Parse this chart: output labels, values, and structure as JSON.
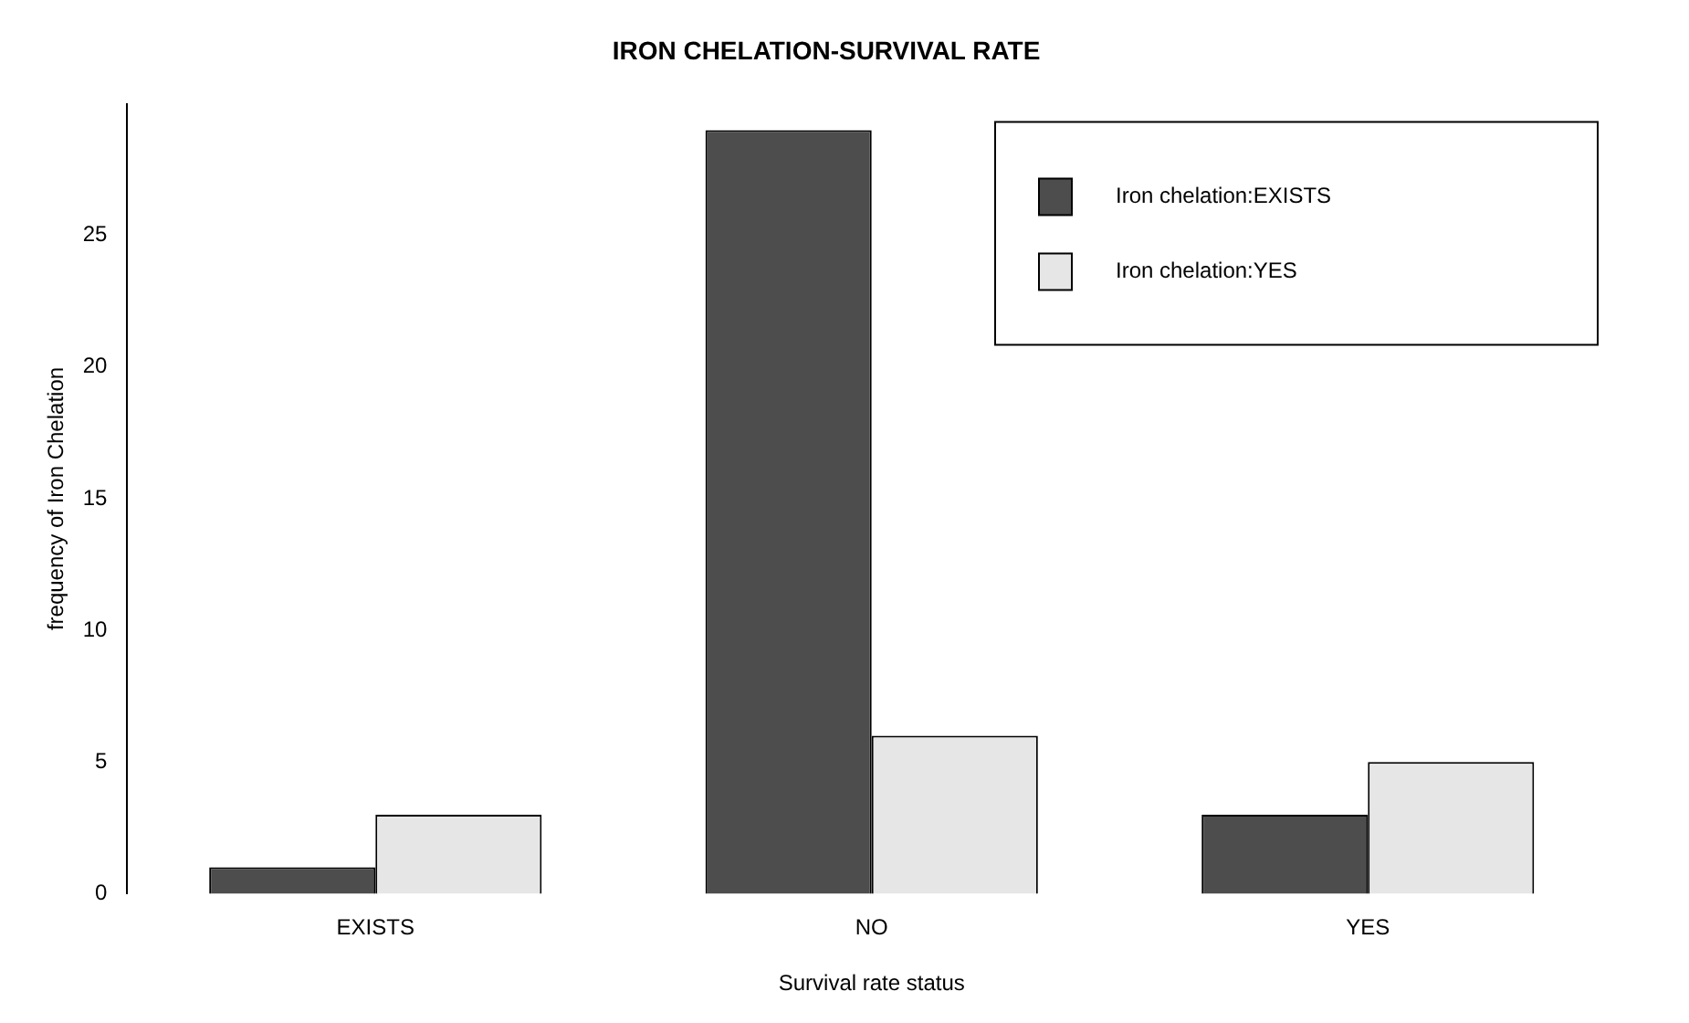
{
  "chart_data": {
    "type": "bar",
    "title": "IRON CHELATION-SURVIVAL RATE",
    "xlabel": "Survival rate status",
    "ylabel": "frequency of Iron Chelation",
    "categories": [
      "EXISTS",
      "NO",
      "YES"
    ],
    "series": [
      {
        "name": "Iron chelation:EXISTS",
        "color": "#4d4d4d",
        "values": [
          1,
          29,
          3
        ]
      },
      {
        "name": "Iron chelation:YES",
        "color": "#e6e6e6",
        "values": [
          3,
          6,
          5
        ]
      }
    ],
    "ylim": [
      0,
      30
    ],
    "yticks": [
      0,
      5,
      10,
      15,
      20,
      25
    ],
    "grid": false,
    "legend": "top right"
  }
}
